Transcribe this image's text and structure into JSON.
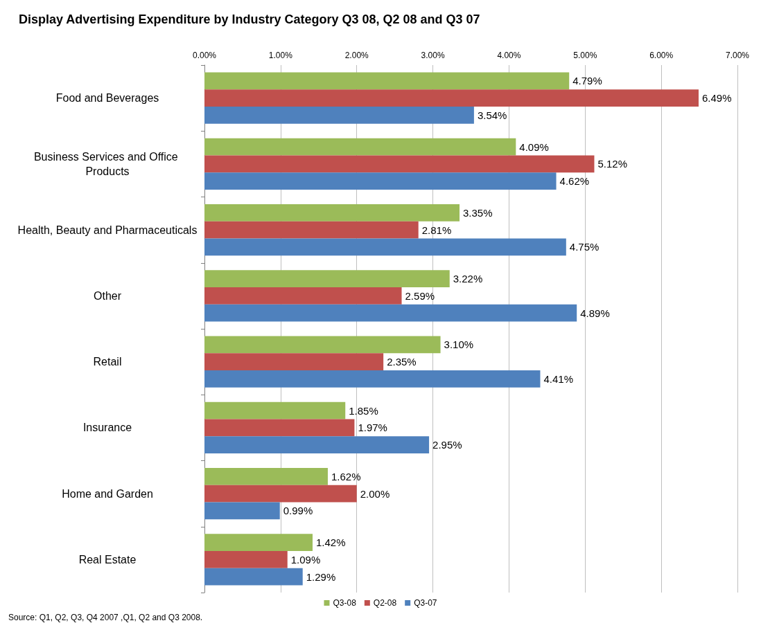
{
  "chart_data": {
    "type": "bar",
    "orientation": "horizontal",
    "title": "Display Advertising Expenditure by Industry Category Q3 08, Q2 08 and Q3 07",
    "categories": [
      "Food and Beverages",
      "Business Services and Office Products",
      "Health, Beauty and Pharmaceuticals",
      "Other",
      "Retail",
      "Insurance",
      "Home and Garden",
      "Real Estate"
    ],
    "series": [
      {
        "name": "Q3-08",
        "color": "#9bbb59",
        "values": [
          4.79,
          4.09,
          3.35,
          3.22,
          3.1,
          1.85,
          1.62,
          1.42
        ],
        "value_labels": [
          "4.79%",
          "4.09%",
          "3.35%",
          "3.22%",
          "3.10%",
          "1.85%",
          "1.62%",
          "1.42%"
        ]
      },
      {
        "name": "Q2-08",
        "color": "#c0504d",
        "values": [
          6.49,
          5.12,
          2.81,
          2.59,
          2.35,
          1.97,
          2.0,
          1.09
        ],
        "value_labels": [
          "6.49%",
          "5.12%",
          "2.81%",
          "2.59%",
          "2.35%",
          "1.97%",
          "2.00%",
          "1.09%"
        ]
      },
      {
        "name": "Q3-07",
        "color": "#4f81bd",
        "values": [
          3.54,
          4.62,
          4.75,
          4.89,
          4.41,
          2.95,
          0.99,
          1.29
        ],
        "value_labels": [
          "3.54%",
          "4.62%",
          "4.75%",
          "4.89%",
          "4.41%",
          "2.95%",
          "0.99%",
          "1.29%"
        ]
      }
    ],
    "xlim": [
      0,
      7
    ],
    "xticks": [
      {
        "value": 0,
        "label": "0.00%"
      },
      {
        "value": 1,
        "label": "1.00%"
      },
      {
        "value": 2,
        "label": "2.00%"
      },
      {
        "value": 3,
        "label": "3.00%"
      },
      {
        "value": 4,
        "label": "4.00%"
      },
      {
        "value": 5,
        "label": "5.00%"
      },
      {
        "value": 6,
        "label": "6.00%"
      },
      {
        "value": 7,
        "label": "7.00%"
      }
    ],
    "grid": "x",
    "legend": "bottom",
    "annotations": [
      "Source: Q1, Q2, Q3, Q4 2007 ,Q1, Q2 and Q3 2008."
    ]
  }
}
